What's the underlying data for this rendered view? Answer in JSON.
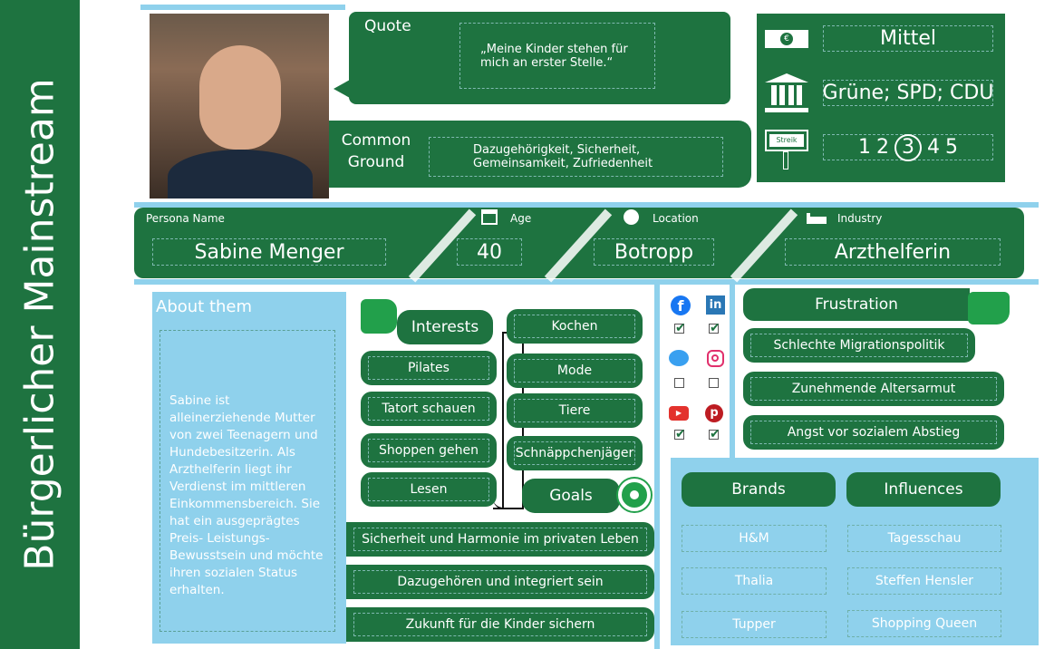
{
  "title": "Bürgerlicher Mainstream",
  "quote": {
    "label": "Quote",
    "text": "„Meine Kinder stehen für mich an erster Stelle.“"
  },
  "common_ground": {
    "label": "Common Ground",
    "text": "Dazugehörigkeit, Sicherheit, Gemeinsamkeit, Zufriedenheit"
  },
  "side": {
    "income": "Mittel",
    "parties": "Grüne; SPD; CDU",
    "sign_text": "Streik",
    "scale": [
      "1",
      "2",
      "3",
      "4",
      "5"
    ],
    "scale_selected": 3
  },
  "persona": {
    "name_label": "Persona Name",
    "name": "Sabine Menger",
    "age_label": "Age",
    "age": "40",
    "location_label": "Location",
    "location": "Botropp",
    "industry_label": "Industry",
    "industry": "Arzthelferin"
  },
  "about": {
    "label": "About them",
    "text": "Sabine ist alleinerziehende Mutter von zwei Teenagern und Hundebesitzerin. Als Arzthelferin liegt ihr Verdienst im mittleren Einkommensbereich. Sie hat ein ausgeprägtes Preis- Leistungs-Bewusstsein und möchte ihren sozialen Status erhalten."
  },
  "interests": {
    "label": "Interests",
    "left": [
      "Pilates",
      "Tatort schauen",
      "Shoppen gehen",
      "Lesen"
    ],
    "right": [
      "Kochen",
      "Mode",
      "Tiere",
      "Schnäppchenjäger"
    ]
  },
  "goals": {
    "label": "Goals",
    "items": [
      "Sicherheit und Harmonie im privaten Leben",
      "Dazugehören und integriert sein",
      "Zukunft für die Kinder sichern"
    ]
  },
  "social": [
    {
      "name": "facebook",
      "checked": true
    },
    {
      "name": "linkedin",
      "checked": true
    },
    {
      "name": "twitter",
      "checked": false
    },
    {
      "name": "instagram",
      "checked": false
    },
    {
      "name": "youtube",
      "checked": true
    },
    {
      "name": "pinterest",
      "checked": true
    }
  ],
  "frustration": {
    "label": "Frustration",
    "items": [
      "Schlechte Migrationspolitik",
      "Zunehmende Altersarmut",
      "Angst vor sozialem Abstieg"
    ]
  },
  "brands": {
    "label": "Brands",
    "items": [
      "H&M",
      "Thalia",
      "Tupper"
    ]
  },
  "influences": {
    "label": "Influences",
    "items": [
      "Tagesschau",
      "Steffen Hensler",
      "Shopping Queen"
    ]
  },
  "colors": {
    "dark_green": "#1e7340",
    "green": "#22a04b",
    "light_blue": "#8fd1ec"
  }
}
